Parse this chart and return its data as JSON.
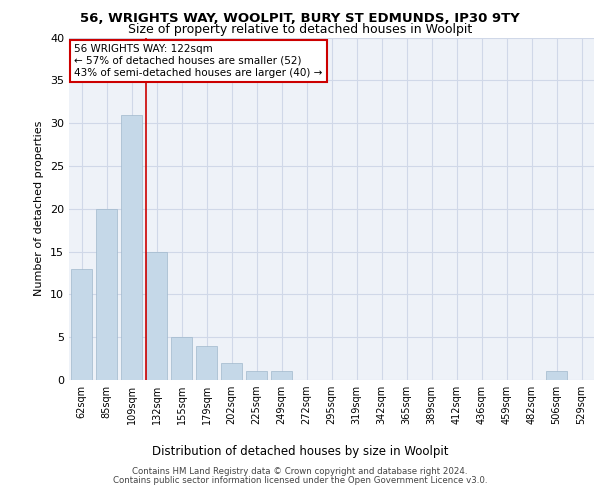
{
  "title1": "56, WRIGHTS WAY, WOOLPIT, BURY ST EDMUNDS, IP30 9TY",
  "title2": "Size of property relative to detached houses in Woolpit",
  "xlabel": "Distribution of detached houses by size in Woolpit",
  "ylabel": "Number of detached properties",
  "categories": [
    "62sqm",
    "85sqm",
    "109sqm",
    "132sqm",
    "155sqm",
    "179sqm",
    "202sqm",
    "225sqm",
    "249sqm",
    "272sqm",
    "295sqm",
    "319sqm",
    "342sqm",
    "365sqm",
    "389sqm",
    "412sqm",
    "436sqm",
    "459sqm",
    "482sqm",
    "506sqm",
    "529sqm"
  ],
  "values": [
    13,
    20,
    31,
    15,
    5,
    4,
    2,
    1,
    1,
    0,
    0,
    0,
    0,
    0,
    0,
    0,
    0,
    0,
    0,
    1,
    0
  ],
  "bar_color": "#c5d8e8",
  "bar_edge_color": "#a0b8cc",
  "bar_width": 0.85,
  "annotation_title": "56 WRIGHTS WAY: 122sqm",
  "annotation_line1": "← 57% of detached houses are smaller (52)",
  "annotation_line2": "43% of semi-detached houses are larger (40) →",
  "annotation_box_color": "#ffffff",
  "annotation_border_color": "#cc0000",
  "ylim": [
    0,
    40
  ],
  "yticks": [
    0,
    5,
    10,
    15,
    20,
    25,
    30,
    35,
    40
  ],
  "grid_color": "#d0d8e8",
  "background_color": "#eef2f8",
  "footer1": "Contains HM Land Registry data © Crown copyright and database right 2024.",
  "footer2": "Contains public sector information licensed under the Open Government Licence v3.0."
}
